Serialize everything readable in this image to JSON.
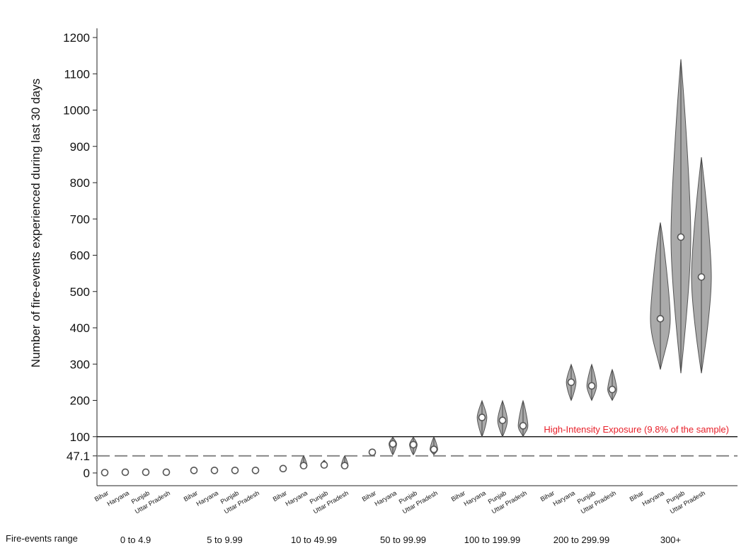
{
  "chart_data": {
    "type": "violin",
    "ylabel": "Number of fire-events experienced during last 30 days",
    "yticks": [
      0,
      47.1,
      100,
      200,
      300,
      400,
      500,
      600,
      700,
      800,
      900,
      1000,
      1100,
      1200
    ],
    "ylim": [
      -20,
      1240
    ],
    "states": [
      "Bihar",
      "Haryana",
      "Punjab",
      "Uttar Pradesh"
    ],
    "group_axis_label": "Fire-events range",
    "groups": [
      {
        "label": "0 to 4.9",
        "medians": [
          1,
          2,
          2,
          2
        ],
        "ranges": [
          null,
          null,
          null,
          null
        ]
      },
      {
        "label": "5 to 9.99",
        "medians": [
          7,
          7,
          7,
          7
        ],
        "ranges": [
          null,
          null,
          null,
          null
        ]
      },
      {
        "label": "10 to 49.99",
        "medians": [
          12,
          20,
          22,
          20
        ],
        "ranges": [
          null,
          [
            15,
            47
          ],
          [
            15,
            35
          ],
          [
            15,
            47
          ]
        ]
      },
      {
        "label": "50 to 99.99",
        "medians": [
          57,
          80,
          78,
          65
        ],
        "ranges": [
          null,
          [
            50,
            99
          ],
          [
            50,
            99
          ],
          [
            50,
            99
          ]
        ]
      },
      {
        "label": "100 to 199.99",
        "medians": [
          null,
          153,
          145,
          130
        ],
        "ranges": [
          null,
          [
            100,
            199
          ],
          [
            100,
            199
          ],
          [
            100,
            199
          ]
        ]
      },
      {
        "label": "200 to 299.99",
        "medians": [
          null,
          250,
          240,
          230
        ],
        "ranges": [
          null,
          [
            200,
            299
          ],
          [
            200,
            299
          ],
          [
            200,
            285
          ]
        ]
      },
      {
        "label": "300+",
        "medians": [
          null,
          425,
          650,
          540
        ],
        "ranges": [
          null,
          [
            285,
            690
          ],
          [
            275,
            1140
          ],
          [
            275,
            870
          ]
        ]
      }
    ],
    "reference_lines": [
      {
        "value": 100,
        "style": "solid",
        "label": "High-Intensity Exposure (9.8% of the sample)",
        "color": "#e8202a"
      },
      {
        "value": 47.1,
        "style": "dashed"
      }
    ],
    "violin_fill": "#aaaaaa",
    "violin_stroke": "#555555"
  }
}
